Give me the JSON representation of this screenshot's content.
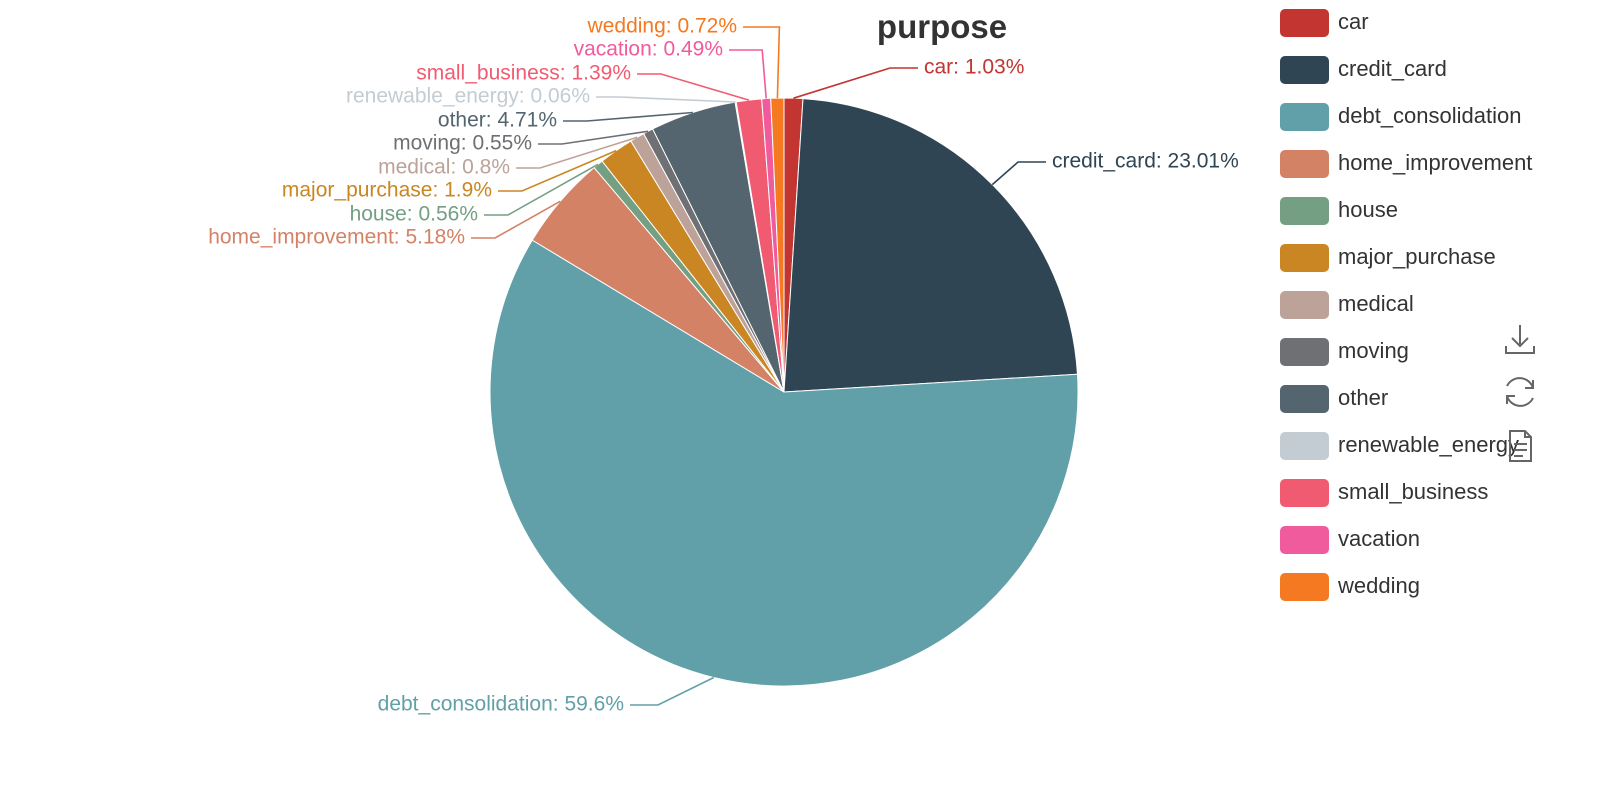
{
  "chart_data": {
    "type": "pie",
    "title": "purpose",
    "legend_position": "right",
    "slices": [
      {
        "name": "car",
        "value": 1.03,
        "label": "car: 1.03%",
        "color": "#c23531"
      },
      {
        "name": "credit_card",
        "value": 23.01,
        "label": "credit_card: 23.01%",
        "color": "#2f4554"
      },
      {
        "name": "debt_consolidation",
        "value": 59.6,
        "label": "debt_consolidation: 59.6%",
        "color": "#61a0a8"
      },
      {
        "name": "home_improvement",
        "value": 5.18,
        "label": "home_improvement: 5.18%",
        "color": "#d48265"
      },
      {
        "name": "house",
        "value": 0.56,
        "label": "house: 0.56%",
        "color": "#749f83"
      },
      {
        "name": "major_purchase",
        "value": 1.9,
        "label": "major_purchase: 1.9%",
        "color": "#ca8622"
      },
      {
        "name": "medical",
        "value": 0.8,
        "label": "medical: 0.8%",
        "color": "#bda29a"
      },
      {
        "name": "moving",
        "value": 0.55,
        "label": "moving: 0.55%",
        "color": "#6e7074"
      },
      {
        "name": "other",
        "value": 4.71,
        "label": "other: 4.71%",
        "color": "#546570"
      },
      {
        "name": "renewable_energy",
        "value": 0.06,
        "label": "renewable_energy: 0.06%",
        "color": "#c4ccd3"
      },
      {
        "name": "small_business",
        "value": 1.39,
        "label": "small_business: 1.39%",
        "color": "#f05b72"
      },
      {
        "name": "vacation",
        "value": 0.49,
        "label": "vacation: 0.49%",
        "color": "#ef5b9c"
      },
      {
        "name": "wedding",
        "value": 0.72,
        "label": "wedding: 0.72%",
        "color": "#f47920"
      }
    ]
  },
  "toolbox": {
    "icons": [
      "download-icon",
      "refresh-icon",
      "data-view-icon"
    ]
  }
}
